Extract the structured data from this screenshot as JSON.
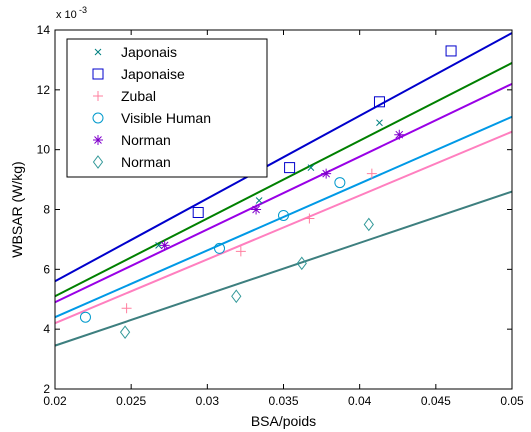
{
  "chart_data": {
    "type": "scatter",
    "xlabel": "BSA/poids",
    "ylabel": "WBSAR (W/kg)",
    "y_multiplier_label": "x 10",
    "y_multiplier_exp": "-3",
    "xlim": [
      0.02,
      0.05
    ],
    "ylim": [
      2,
      14
    ],
    "xticks": [
      0.02,
      0.025,
      0.03,
      0.035,
      0.04,
      0.045,
      0.05
    ],
    "xtick_labels": [
      "0.02",
      "0.025",
      "0.03",
      "0.035",
      "0.04",
      "0.045",
      "0.05"
    ],
    "yticks": [
      2,
      4,
      6,
      8,
      10,
      12,
      14
    ],
    "ytick_labels": [
      "2",
      "4",
      "6",
      "8",
      "10",
      "12",
      "14"
    ],
    "grid": false,
    "legend_position": "top-left",
    "series": [
      {
        "name": "Japonais",
        "marker": "x",
        "color": "#008080",
        "points": [
          [
            0.0268,
            6.8
          ],
          [
            0.0334,
            8.3
          ],
          [
            0.0368,
            9.4
          ],
          [
            0.0413,
            10.9
          ]
        ],
        "fit_line": {
          "color": "#008000",
          "x": [
            0.02,
            0.05
          ],
          "y": [
            5.1,
            12.9
          ]
        }
      },
      {
        "name": "Japonaise",
        "marker": "square",
        "color": "#0000cc",
        "points": [
          [
            0.0294,
            7.9
          ],
          [
            0.0354,
            9.4
          ],
          [
            0.0413,
            11.6
          ],
          [
            0.046,
            13.3
          ]
        ],
        "fit_line": {
          "color": "#0000cc",
          "x": [
            0.02,
            0.05
          ],
          "y": [
            5.6,
            13.9
          ]
        }
      },
      {
        "name": "Zubal",
        "marker": "plus",
        "color": "#ff7f9f",
        "points": [
          [
            0.0247,
            4.7
          ],
          [
            0.0322,
            6.6
          ],
          [
            0.0367,
            7.7
          ],
          [
            0.0408,
            9.2
          ]
        ],
        "fit_line": {
          "color": "#ff7fbf",
          "x": [
            0.02,
            0.05
          ],
          "y": [
            4.2,
            10.6
          ]
        }
      },
      {
        "name": "Visible Human",
        "marker": "circle",
        "color": "#0099cc",
        "points": [
          [
            0.022,
            4.4
          ],
          [
            0.0308,
            6.7
          ],
          [
            0.035,
            7.8
          ],
          [
            0.0387,
            8.9
          ]
        ],
        "fit_line": {
          "color": "#0099e6",
          "x": [
            0.02,
            0.05
          ],
          "y": [
            4.4,
            11.1
          ]
        }
      },
      {
        "name": "Norman",
        "marker": "star",
        "color": "#8000cc",
        "points": [
          [
            0.0272,
            6.8
          ],
          [
            0.0332,
            8.0
          ],
          [
            0.0378,
            9.2
          ],
          [
            0.0426,
            10.5
          ]
        ],
        "fit_line": {
          "color": "#9900e6",
          "x": [
            0.02,
            0.05
          ],
          "y": [
            4.9,
            12.2
          ]
        }
      },
      {
        "name": "Norman",
        "marker": "diamond",
        "color": "#339999",
        "points": [
          [
            0.0246,
            3.9
          ],
          [
            0.0319,
            5.1
          ],
          [
            0.0362,
            6.2
          ],
          [
            0.0406,
            7.5
          ]
        ],
        "fit_line": {
          "color": "#3d7f7f",
          "x": [
            0.02,
            0.05
          ],
          "y": [
            3.45,
            8.6
          ]
        }
      }
    ]
  }
}
